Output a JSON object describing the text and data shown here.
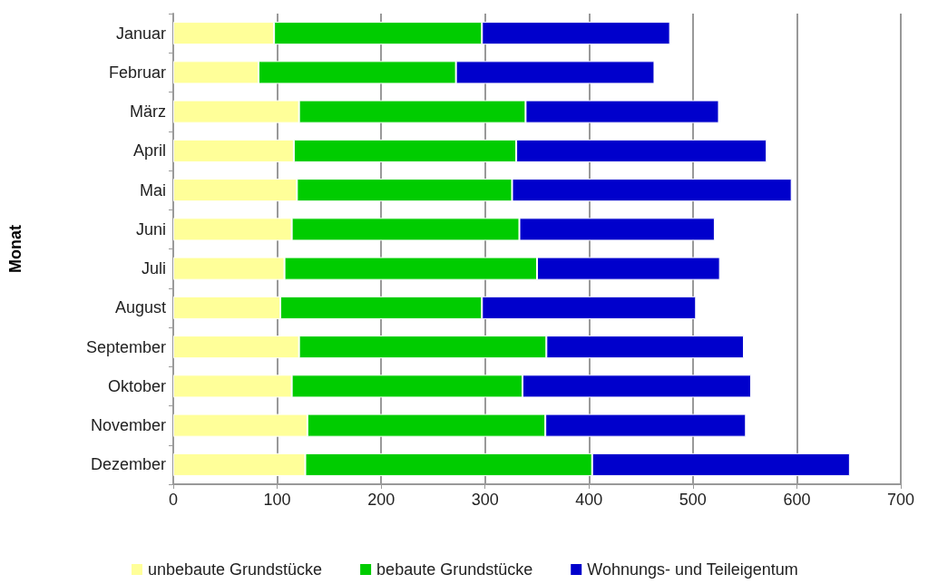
{
  "chart_data": {
    "type": "bar",
    "orientation": "horizontal",
    "stacked": true,
    "ylabel": "Monat",
    "categories": [
      "Januar",
      "Februar",
      "März",
      "April",
      "Mai",
      "Juni",
      "Juli",
      "August",
      "September",
      "Oktober",
      "November",
      "Dezember"
    ],
    "series": [
      {
        "name": "unbebaute Grundstücke",
        "color": "#ffff99",
        "values": [
          97,
          82,
          121,
          116,
          119,
          114,
          107,
          103,
          121,
          114,
          129,
          127
        ]
      },
      {
        "name": "bebaute Grundstücke",
        "color": "#00cc00",
        "values": [
          200,
          190,
          218,
          214,
          207,
          219,
          243,
          194,
          238,
          222,
          229,
          276
        ]
      },
      {
        "name": "Wohnungs- und Teileigentum",
        "color": "#0000cc",
        "values": [
          181,
          191,
          186,
          241,
          269,
          188,
          176,
          206,
          190,
          220,
          193,
          248
        ]
      }
    ],
    "xlim": [
      0,
      700
    ],
    "xticks": [
      0,
      100,
      200,
      300,
      400,
      500,
      600,
      700
    ],
    "grid": "x",
    "legend": "bottom"
  }
}
